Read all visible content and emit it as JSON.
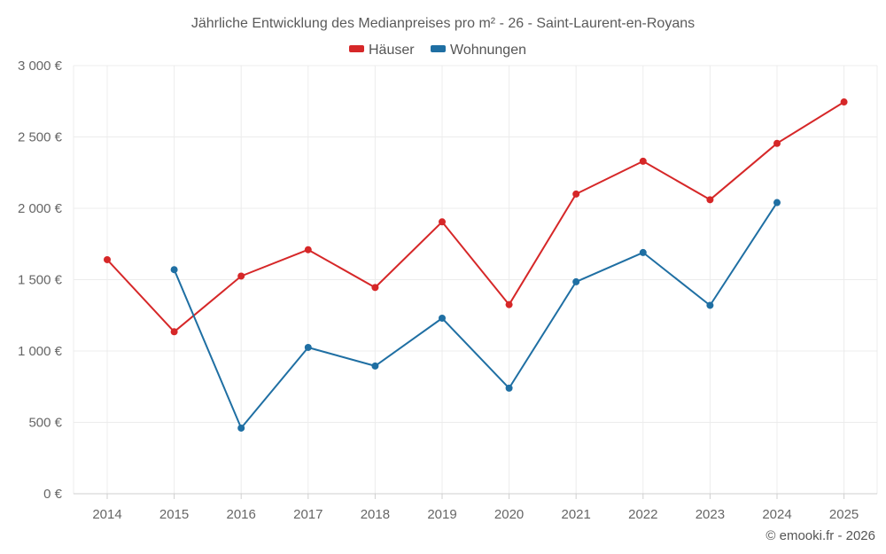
{
  "chart_data": {
    "type": "line",
    "title": "Jährliche Entwicklung des Medianpreises pro m² - 26 - Saint-Laurent-en-Royans",
    "categories": [
      "2014",
      "2015",
      "2016",
      "2017",
      "2018",
      "2019",
      "2020",
      "2021",
      "2022",
      "2023",
      "2024",
      "2025"
    ],
    "ylim": [
      0,
      3000
    ],
    "yticks": [
      0,
      500,
      1000,
      1500,
      2000,
      2500,
      3000
    ],
    "ytick_labels": [
      "0 €",
      "500 €",
      "1 000 €",
      "1 500 €",
      "2 000 €",
      "2 500 €",
      "3 000 €"
    ],
    "grid": true,
    "legend_position": "top-center",
    "series": [
      {
        "name": "Häuser",
        "color": "#d62728",
        "values": [
          1640,
          1135,
          1525,
          1710,
          1445,
          1905,
          1325,
          2100,
          2330,
          2060,
          2455,
          2745
        ]
      },
      {
        "name": "Wohnungen",
        "color": "#1f6fa3",
        "values": [
          null,
          1570,
          460,
          1025,
          895,
          1230,
          740,
          1485,
          1690,
          1320,
          2040,
          null
        ]
      }
    ]
  },
  "credit": "© emooki.fr - 2026"
}
